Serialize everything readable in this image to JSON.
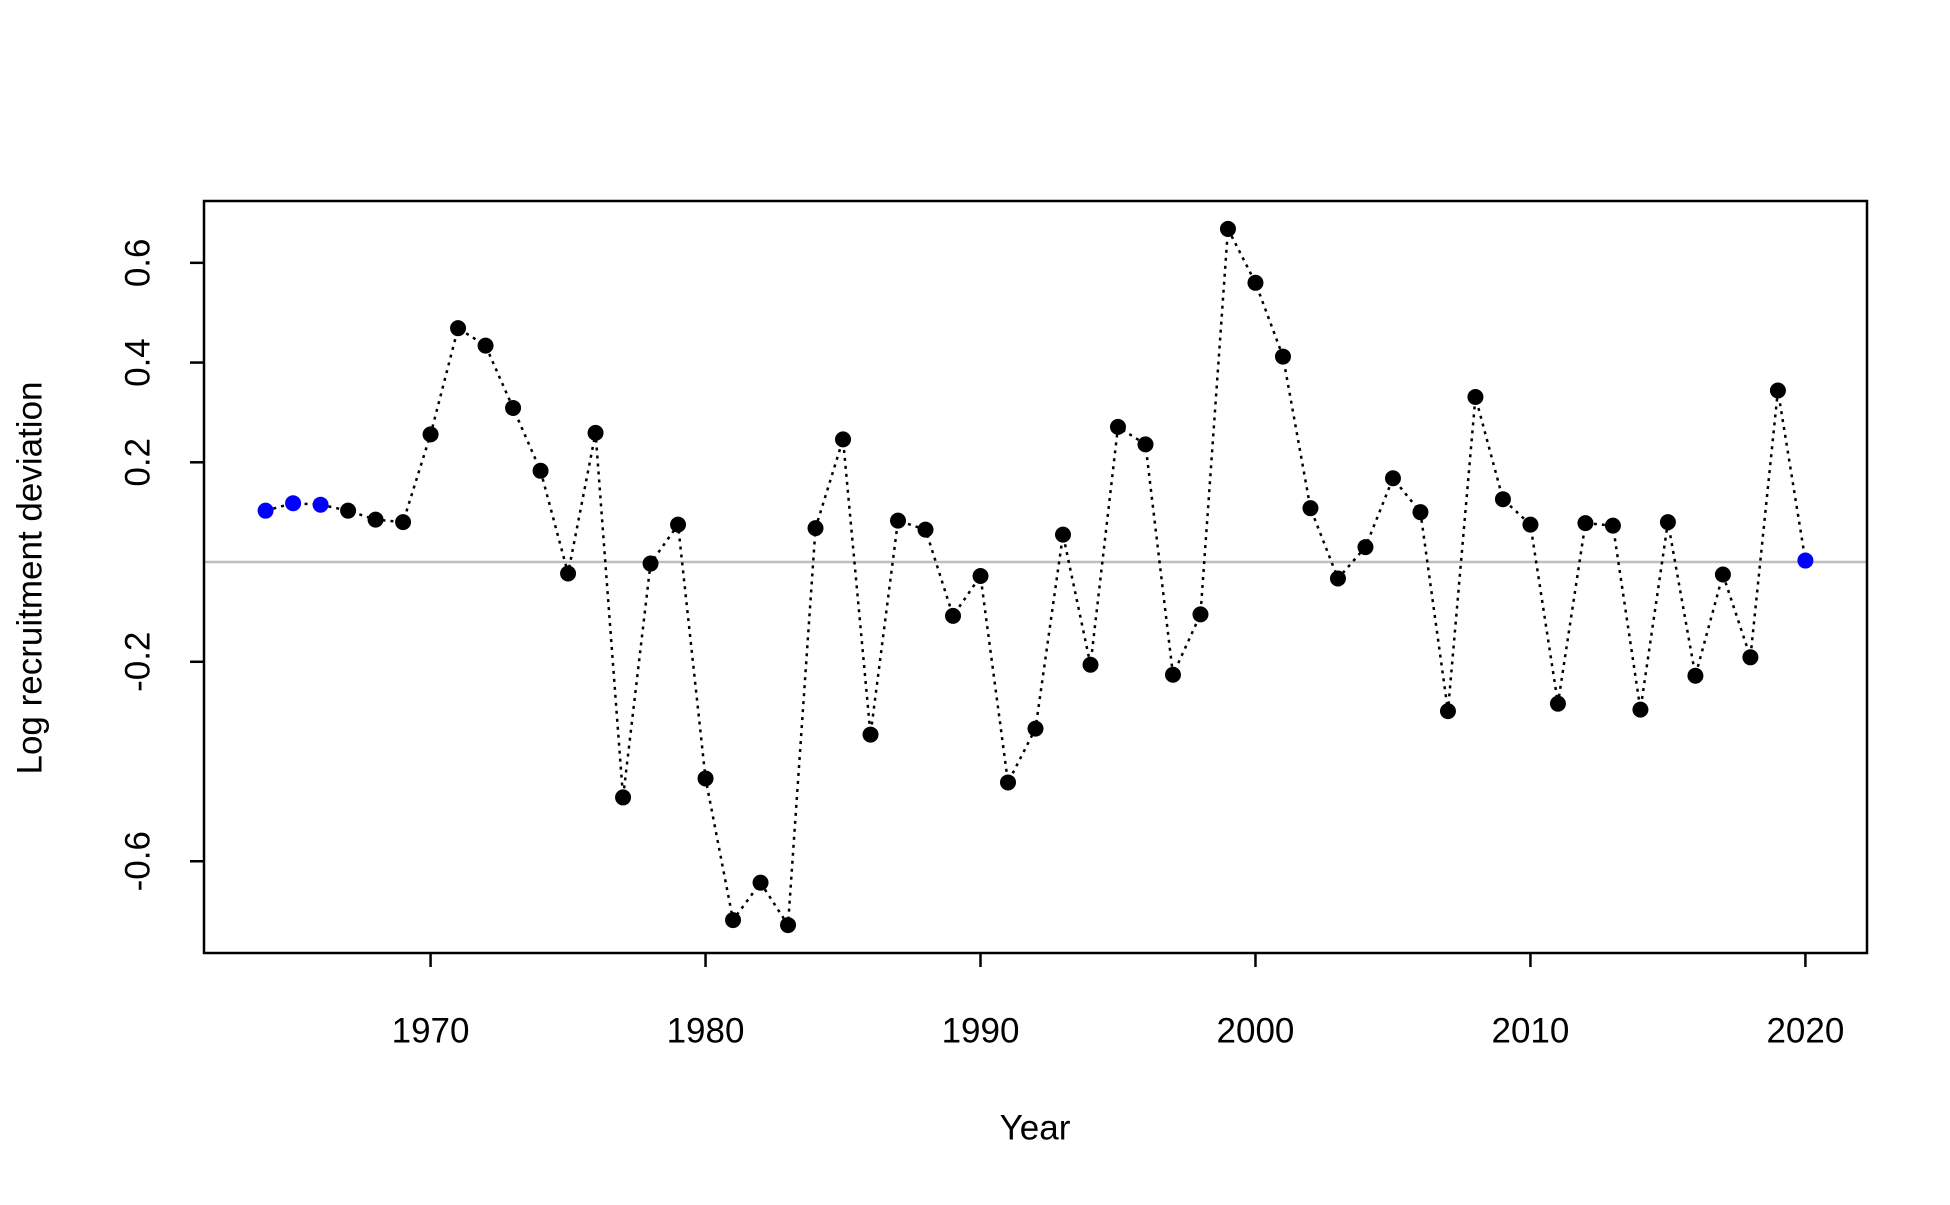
{
  "chart_data": {
    "type": "line",
    "x_label": "Year",
    "y_label": "Log recruitment deviation",
    "x": [
      1964,
      1965,
      1966,
      1967,
      1968,
      1969,
      1970,
      1971,
      1972,
      1973,
      1974,
      1975,
      1976,
      1977,
      1978,
      1979,
      1980,
      1981,
      1982,
      1983,
      1984,
      1985,
      1986,
      1987,
      1988,
      1989,
      1990,
      1991,
      1992,
      1993,
      1994,
      1995,
      1996,
      1997,
      1998,
      1999,
      2000,
      2001,
      2002,
      2003,
      2004,
      2005,
      2006,
      2007,
      2008,
      2009,
      2010,
      2011,
      2012,
      2013,
      2014,
      2015,
      2016,
      2017,
      2018,
      2019,
      2020
    ],
    "series": [
      {
        "color": "#000000",
        "values": [
          0.103,
          0.118,
          0.115,
          0.103,
          0.085,
          0.08,
          0.256,
          0.469,
          0.434,
          0.309,
          0.183,
          -0.023,
          0.259,
          -0.472,
          -0.003,
          0.075,
          -0.434,
          -0.718,
          -0.643,
          -0.728,
          0.068,
          0.246,
          -0.346,
          0.083,
          0.065,
          -0.108,
          -0.028,
          -0.442,
          -0.334,
          0.055,
          -0.206,
          0.271,
          0.236,
          -0.226,
          -0.105,
          0.668,
          0.56,
          0.412,
          0.108,
          -0.033,
          0.03,
          0.168,
          0.1,
          -0.299,
          0.331,
          0.126,
          0.075,
          -0.284,
          0.078,
          0.073,
          -0.296,
          0.08,
          -0.228,
          -0.025,
          -0.191,
          0.344,
          0.003
        ],
        "point_colors": [
          "#0000ff",
          "#0000ff",
          "#0000ff",
          "#000000",
          "#000000",
          "#000000",
          "#000000",
          "#000000",
          "#000000",
          "#000000",
          "#000000",
          "#000000",
          "#000000",
          "#000000",
          "#000000",
          "#000000",
          "#000000",
          "#000000",
          "#000000",
          "#000000",
          "#000000",
          "#000000",
          "#000000",
          "#000000",
          "#000000",
          "#000000",
          "#000000",
          "#000000",
          "#000000",
          "#000000",
          "#000000",
          "#000000",
          "#000000",
          "#000000",
          "#000000",
          "#000000",
          "#000000",
          "#000000",
          "#000000",
          "#000000",
          "#000000",
          "#000000",
          "#000000",
          "#000000",
          "#000000",
          "#000000",
          "#000000",
          "#000000",
          "#000000",
          "#000000",
          "#000000",
          "#000000",
          "#000000",
          "#000000",
          "#000000",
          "#000000",
          "#0000ff"
        ]
      }
    ],
    "xlim": [
      1961.76,
      2022.24
    ],
    "xticks": [
      1970,
      1980,
      1990,
      2000,
      2010,
      2020
    ],
    "ylim": [
      -0.784,
      0.724
    ],
    "yticks": [
      -0.6,
      -0.2,
      0.2,
      0.4,
      0.6
    ],
    "reference_line": 0,
    "reference_line_color": "#bebebe",
    "grid": false
  }
}
